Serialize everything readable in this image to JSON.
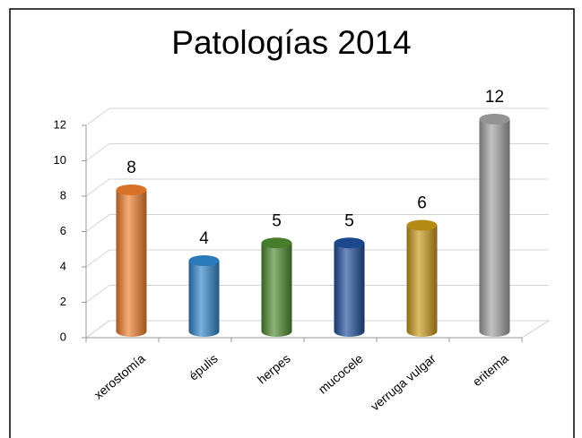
{
  "chart_data": {
    "type": "bar",
    "title": "Patologías 2014",
    "categories": [
      "xerostomía",
      "épulis",
      "herpes",
      "mucocele",
      "verruga vulgar",
      "eritema"
    ],
    "values": [
      8,
      4,
      5,
      5,
      6,
      12
    ],
    "colors": [
      "#f07f2c",
      "#2f86cc",
      "#4e8a2f",
      "#1f4f9c",
      "#c99a1a",
      "#a3a3a3"
    ],
    "ylim": [
      0,
      12
    ],
    "yticks": [
      0,
      2,
      4,
      6,
      8,
      10,
      12
    ],
    "grid": true
  }
}
